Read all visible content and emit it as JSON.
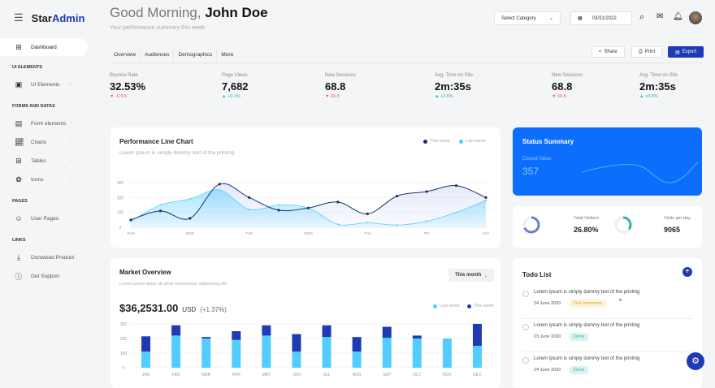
{
  "brand": {
    "part1": "Star",
    "part2": "Admin",
    "menu_icon": "hamburger-icon"
  },
  "sidebar": {
    "dashboard": "Dashboard",
    "sections": [
      {
        "head": "UI ELEMENTS",
        "items": [
          {
            "label": "UI Elements",
            "icon": "ui-elements-icon",
            "caret": true
          }
        ]
      },
      {
        "head": "FORMS AND DATAS",
        "items": [
          {
            "label": "Form elements",
            "icon": "form-icon",
            "caret": true
          },
          {
            "label": "Charts",
            "icon": "chart-icon",
            "caret": true
          },
          {
            "label": "Tables",
            "icon": "table-icon",
            "caret": true
          },
          {
            "label": "Icons",
            "icon": "icons-icon",
            "caret": true
          }
        ]
      },
      {
        "head": "PAGES",
        "items": [
          {
            "label": "User Pages",
            "icon": "user-icon",
            "caret": false
          }
        ]
      },
      {
        "head": "LINKS",
        "items": [
          {
            "label": "Donwload Product",
            "icon": "download-icon",
            "caret": false
          },
          {
            "label": "Get Support",
            "icon": "info-icon",
            "caret": false
          }
        ]
      }
    ]
  },
  "header": {
    "greeting": "Good Morning,",
    "name": "John Doe",
    "subtitle": "Your performance summary this week",
    "category_placeholder": "Select Category",
    "date": "03/31/2022"
  },
  "tabs": [
    "Overview",
    "Audiences",
    "Demographics",
    "More"
  ],
  "actions": {
    "share": "Share",
    "print": "Print",
    "export": "Export"
  },
  "stats": [
    {
      "label": "Bounce Rate",
      "value": "32.53%",
      "delta": "-0.5%",
      "dir": "down"
    },
    {
      "label": "Page Views",
      "value": "7,682",
      "delta": "+0.1%",
      "dir": "up"
    },
    {
      "label": "New Sessions",
      "value": "68.8",
      "delta": "68.8",
      "dir": "down"
    },
    {
      "label": "Avg. Time on Site",
      "value": "2m:35s",
      "delta": "+0.8%",
      "dir": "up"
    },
    {
      "label": "New Sessions",
      "value": "68.8",
      "delta": "68.8",
      "dir": "down"
    },
    {
      "label": "Avg. Time on Site",
      "value": "2m:35s",
      "delta": "+0.8%",
      "dir": "up"
    }
  ],
  "colors": {
    "primary": "#1f3bb3",
    "status_blue": "#0d6efd",
    "this_week": "#1f2f6b",
    "last_week": "#52cdff",
    "bar_dark": "#1f3bb3",
    "up": "#34b1aa",
    "down": "#f95f53"
  },
  "performance": {
    "title": "Performance Line Chart",
    "desc": "Lorem Ipsum is simply dummy text of the printing",
    "legend_this": "This week",
    "legend_last": "Last week"
  },
  "market": {
    "title": "Market Overview",
    "desc": "Lorem ipsum dolor sit amet consectetur adipisicing elit",
    "period": "This month",
    "amount": "$36,2531.00",
    "currency": "USD",
    "change": "(+1.37%)",
    "legend_last": "Last week",
    "legend_this": "This week"
  },
  "status": {
    "title": "Status Summary",
    "label": "Closed Value",
    "value": "357"
  },
  "visitors": {
    "total_label": "Total Visitors",
    "total": "26.80%",
    "total_pct": 68,
    "perday_label": "Visits per day",
    "perday": "9065",
    "perday_pct": 35
  },
  "todo": {
    "title": "Todo List",
    "items": [
      {
        "text": "Lorem Ipsum is simply dummy text of the printing",
        "date": "24 June 2020",
        "badge": "Due tomorrow",
        "type": "due"
      },
      {
        "text": "Lorem Ipsum is simply dummy text of the printing",
        "date": "23 June 2020",
        "badge": "Done",
        "type": "done"
      },
      {
        "text": "Lorem Ipsum is simply dummy text of the printing",
        "date": "24 June 2020",
        "badge": "Done",
        "type": "done"
      }
    ]
  },
  "chart_data": [
    {
      "type": "line",
      "title": "Performance Line Chart",
      "xlabels": [
        "SUN",
        "MON",
        "TUE",
        "WED",
        "THU",
        "FRI",
        "SAT"
      ],
      "ylim": [
        0,
        300
      ],
      "yticks": [
        0,
        100,
        200,
        300
      ],
      "series": [
        {
          "name": "This week",
          "values": [
            50,
            110,
            60,
            290,
            200,
            115,
            130,
            170,
            90,
            210,
            240,
            280,
            200
          ]
        },
        {
          "name": "Last week",
          "values": [
            40,
            150,
            190,
            250,
            120,
            150,
            130,
            20,
            30,
            15,
            40,
            100,
            180
          ]
        }
      ]
    },
    {
      "type": "bar",
      "stacked": true,
      "title": "Market Overview",
      "categories": [
        "JAN",
        "FEB",
        "MAR",
        "APR",
        "MAY",
        "JUN",
        "JUL",
        "AUG",
        "SEP",
        "OCT",
        "NOV",
        "DEC"
      ],
      "ylim": [
        0,
        300
      ],
      "yticks": [
        0,
        100,
        200,
        300
      ],
      "series": [
        {
          "name": "Last week",
          "values": [
            110,
            220,
            200,
            190,
            220,
            110,
            210,
            110,
            205,
            200,
            200,
            150
          ]
        },
        {
          "name": "This week",
          "values": [
            105,
            70,
            10,
            60,
            70,
            120,
            80,
            100,
            75,
            20,
            0,
            150
          ]
        }
      ]
    }
  ]
}
